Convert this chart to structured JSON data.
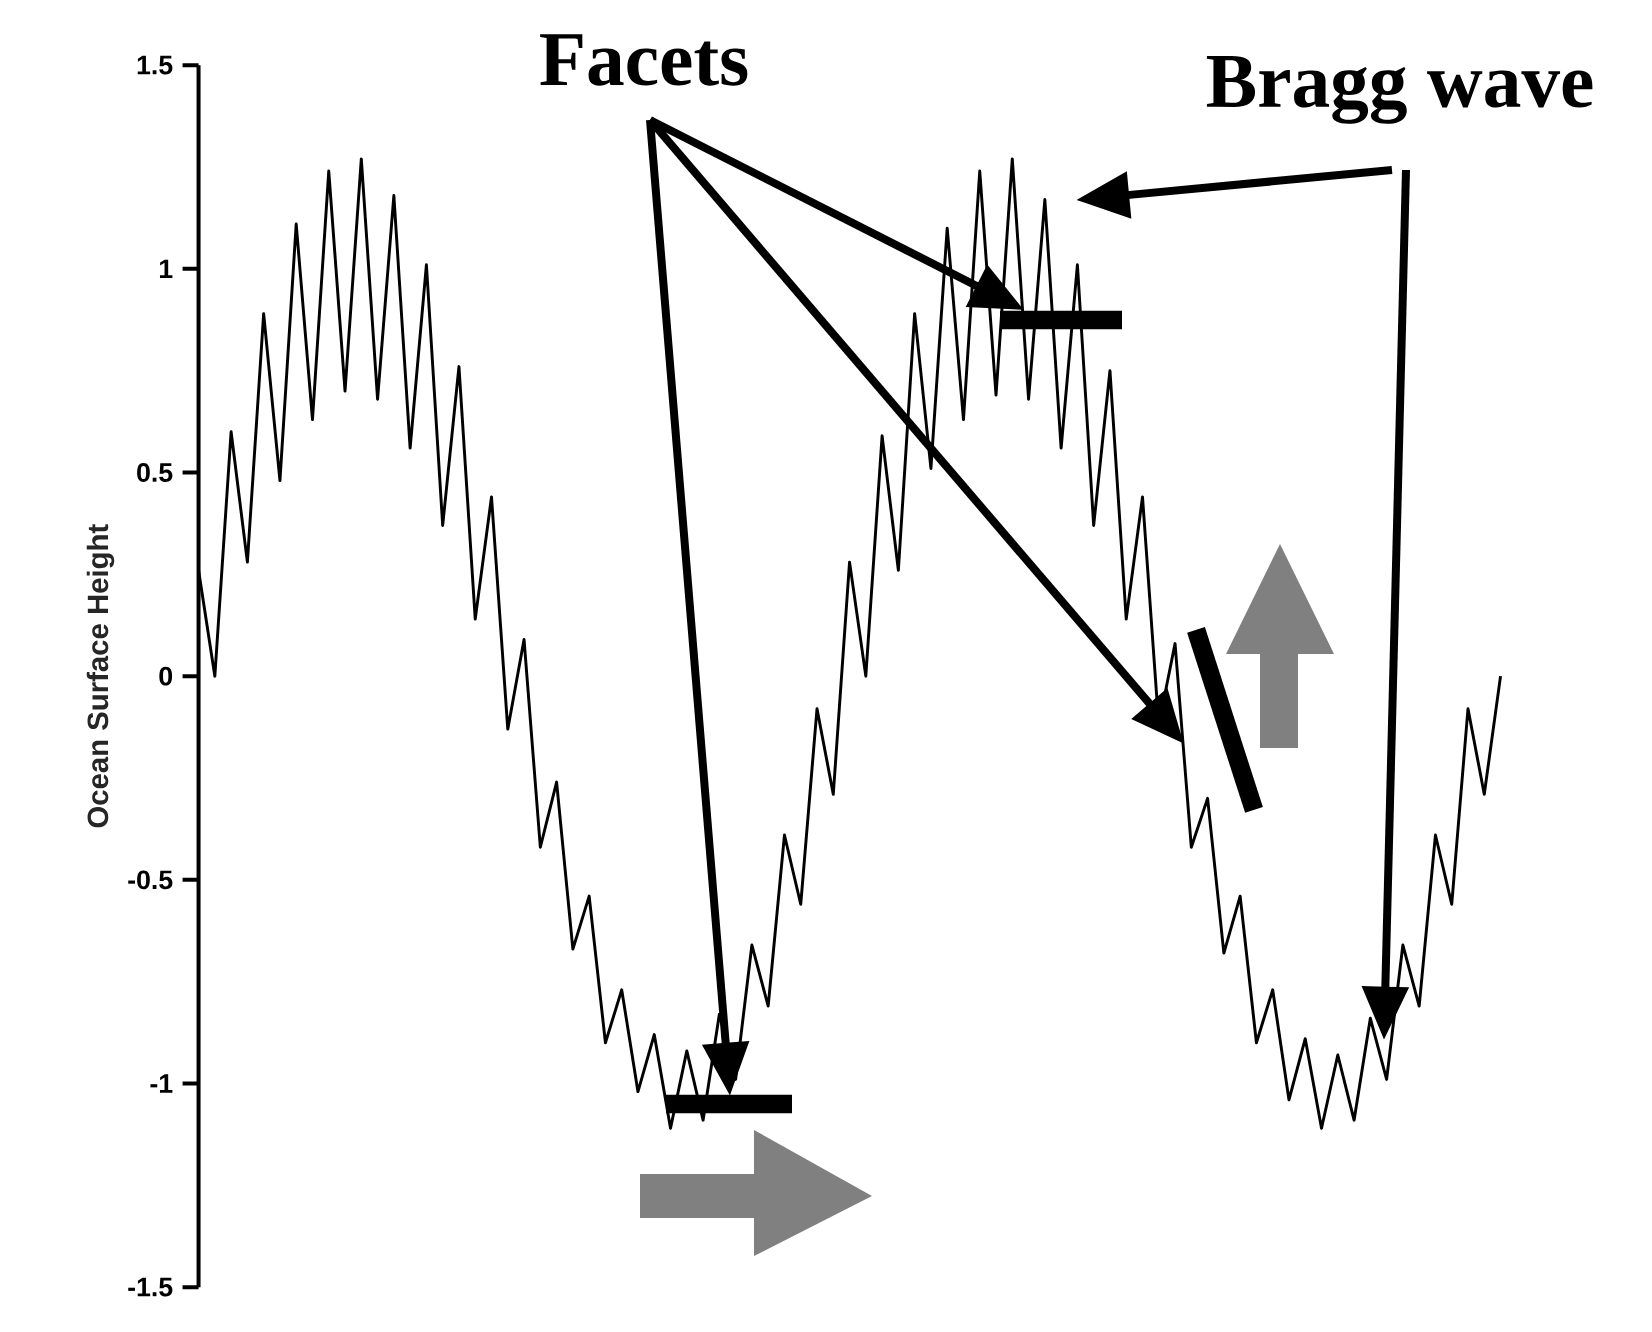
{
  "chart_data": {
    "type": "line",
    "ylabel": "Ocean Surface Height",
    "annotations": [
      "Facets",
      "Bragg wave"
    ],
    "categories": [
      null,
      null,
      null,
      null,
      null,
      null,
      null,
      null,
      null,
      null,
      null,
      null,
      null,
      null,
      null,
      null,
      null,
      null,
      null,
      null,
      null,
      null,
      null,
      null,
      null,
      null,
      null,
      null,
      null,
      null,
      null,
      null,
      null,
      null,
      null,
      null,
      null,
      null,
      null,
      null,
      null,
      null,
      null,
      null,
      null,
      null,
      null,
      null,
      null,
      null,
      null,
      null,
      null,
      null,
      null,
      null,
      null,
      null,
      null,
      null,
      null,
      null,
      null,
      null,
      null,
      null,
      null,
      null,
      null,
      null,
      null,
      null,
      null,
      null,
      null,
      null,
      null,
      null,
      null,
      null,
      null
    ],
    "values": [
      0.26,
      0.0,
      0.6,
      0.28,
      0.89,
      0.48,
      1.11,
      0.63,
      1.24,
      0.7,
      1.27,
      0.68,
      1.18,
      0.56,
      1.01,
      0.37,
      0.76,
      0.14,
      0.44,
      -0.13,
      0.09,
      -0.42,
      -0.26,
      -0.67,
      -0.54,
      -0.9,
      -0.77,
      -1.02,
      -0.88,
      -1.11,
      -0.92,
      -1.09,
      -0.83,
      -0.99,
      -0.66,
      -0.81,
      -0.39,
      -0.56,
      -0.08,
      -0.29,
      0.28,
      0.0,
      0.59,
      0.26,
      0.89,
      0.51,
      1.1,
      0.63,
      1.24,
      0.69,
      1.27,
      0.68,
      1.17,
      0.56,
      1.01,
      0.37,
      0.75,
      0.14,
      0.44,
      -0.12,
      0.08,
      -0.42,
      -0.3,
      -0.68,
      -0.54,
      -0.9,
      -0.77,
      -1.04,
      -0.89,
      -1.11,
      -0.93,
      -1.09,
      -0.84,
      -0.99,
      -0.66,
      -0.81,
      -0.39,
      -0.56,
      -0.08,
      -0.29,
      0.0
    ],
    "color": "#000000",
    "marker": "none",
    "line_style": "solid",
    "ylim": [
      -1.5,
      1.5
    ],
    "yticks": [
      -1.5,
      -1,
      -0.5,
      0,
      0.5,
      1,
      1.5
    ],
    "tick_labels": "y"
  }
}
